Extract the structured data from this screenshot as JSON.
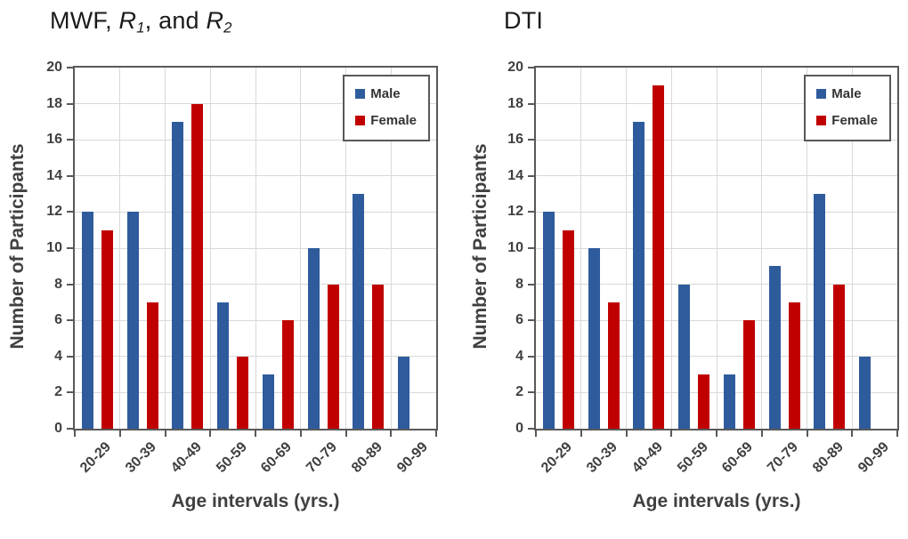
{
  "colors": {
    "male": "#2E5B9C",
    "female": "#C00000",
    "grid": "#D9D9D9",
    "axis": "#595959",
    "text": "#404040"
  },
  "chart_data": [
    {
      "type": "bar",
      "title": "MWF, R1, and R2",
      "title_parts": [
        {
          "text": "MWF, "
        },
        {
          "text": "R",
          "italic": true
        },
        {
          "text": "1",
          "italic": true,
          "sub": true
        },
        {
          "text": ", and "
        },
        {
          "text": "R",
          "italic": true
        },
        {
          "text": "2",
          "italic": true,
          "sub": true
        }
      ],
      "categories": [
        "20-29",
        "30-39",
        "40-49",
        "50-59",
        "60-69",
        "70-79",
        "80-89",
        "90-99"
      ],
      "series": [
        {
          "name": "Male",
          "color_key": "male",
          "values": [
            12,
            12,
            17,
            7,
            3,
            10,
            13,
            4
          ]
        },
        {
          "name": "Female",
          "color_key": "female",
          "values": [
            11,
            7,
            18,
            4,
            6,
            8,
            8,
            0
          ]
        }
      ],
      "xlabel": "Age intervals (yrs.)",
      "ylabel": "Number of Participants",
      "ylim": [
        0,
        20
      ],
      "ytick_step": 2,
      "grid": true,
      "legend_position": "top-right"
    },
    {
      "type": "bar",
      "title": "DTI",
      "title_parts": [
        {
          "text": "DTI"
        }
      ],
      "categories": [
        "20-29",
        "30-39",
        "40-49",
        "50-59",
        "60-69",
        "70-79",
        "80-89",
        "90-99"
      ],
      "series": [
        {
          "name": "Male",
          "color_key": "male",
          "values": [
            12,
            10,
            17,
            8,
            3,
            9,
            13,
            4
          ]
        },
        {
          "name": "Female",
          "color_key": "female",
          "values": [
            11,
            7,
            19,
            3,
            6,
            7,
            8,
            0
          ]
        }
      ],
      "xlabel": "Age intervals (yrs.)",
      "ylabel": "Number of Participants",
      "ylim": [
        0,
        20
      ],
      "ytick_step": 2,
      "grid": true,
      "legend_position": "top-right"
    }
  ]
}
